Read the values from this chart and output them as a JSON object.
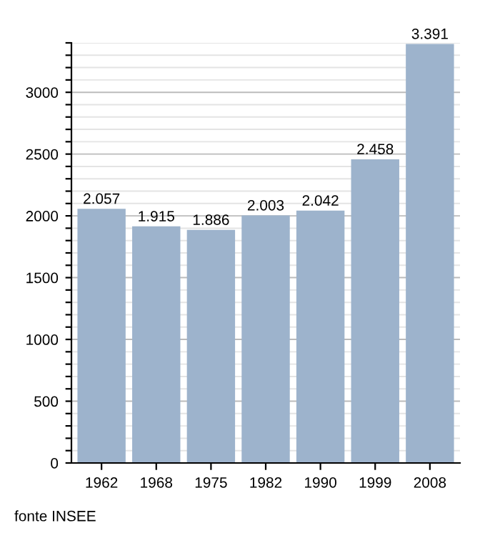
{
  "chart_data": {
    "type": "bar",
    "categories": [
      "1962",
      "1968",
      "1975",
      "1982",
      "1990",
      "1999",
      "2008"
    ],
    "values": [
      2057,
      1915,
      1886,
      2003,
      2042,
      2458,
      3391
    ],
    "value_labels": [
      "2.057",
      "1.915",
      "1.886",
      "2.003",
      "2.042",
      "2.458",
      "3.391"
    ],
    "color": "#9db3cc",
    "ylim": [
      0,
      3400
    ],
    "yticks": [
      0,
      {
        "value": 100,
        "label": null
      },
      {
        "value": 200,
        "label": null
      },
      {
        "value": 300,
        "label": null
      },
      {
        "value": 400,
        "label": null
      },
      500,
      {
        "value": 600,
        "label": null
      },
      {
        "value": 700,
        "label": null
      },
      {
        "value": 800,
        "label": null
      },
      {
        "value": 900,
        "label": null
      },
      1000,
      {
        "value": 1100,
        "label": null
      },
      {
        "value": 1200,
        "label": null
      },
      {
        "value": 1300,
        "label": null
      },
      {
        "value": 1400,
        "label": null
      },
      1500,
      {
        "value": 1600,
        "label": null
      },
      {
        "value": 1700,
        "label": null
      },
      {
        "value": 1800,
        "label": null
      },
      {
        "value": 1900,
        "label": null
      },
      2000,
      {
        "value": 2100,
        "label": null
      },
      {
        "value": 2200,
        "label": null
      },
      {
        "value": 2300,
        "label": null
      },
      {
        "value": 2400,
        "label": null
      },
      2500,
      {
        "value": 2600,
        "label": null
      },
      {
        "value": 2700,
        "label": null
      },
      {
        "value": 2800,
        "label": null
      },
      {
        "value": 2900,
        "label": null
      },
      3000,
      {
        "value": 3100,
        "label": null
      },
      {
        "value": 3200,
        "label": null
      },
      {
        "value": 3300,
        "label": null
      },
      {
        "value": 3400,
        "label": null
      }
    ],
    "grid": "y",
    "legend": false,
    "annotations": [
      "fonte INSEE"
    ]
  }
}
